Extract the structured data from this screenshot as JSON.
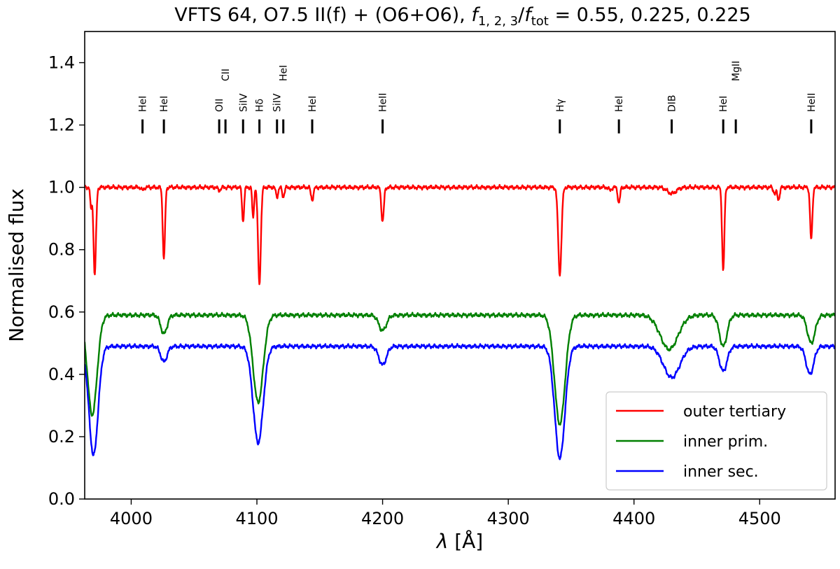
{
  "chart_data": {
    "type": "line",
    "title_parts": {
      "prefix": "VFTS 64, O7.5 II(f) + (O6+O6), ",
      "f_symbol": "f",
      "f_sub": "1, 2, 3",
      "slash": "/",
      "tot_sub": "tot",
      "suffix": " = 0.55, 0.225, 0.225"
    },
    "xlabel": {
      "lambda": "λ",
      "unit": " [Å]"
    },
    "ylabel": "Normalised flux",
    "xlim": [
      3963,
      4560
    ],
    "ylim": [
      0.0,
      1.5
    ],
    "x_ticks": [
      4000,
      4100,
      4200,
      4300,
      4400,
      4500
    ],
    "y_ticks": [
      "0.0",
      "0.2",
      "0.4",
      "0.6",
      "0.8",
      "1.0",
      "1.2",
      "1.4"
    ],
    "grid": false,
    "legend_position": "lower-right",
    "line_ids": [
      {
        "label": "HeI",
        "wavelength": 4009,
        "tier": 0
      },
      {
        "label": "HeI",
        "wavelength": 4026,
        "tier": 0
      },
      {
        "label": "OII",
        "wavelength": 4070,
        "tier": 0
      },
      {
        "label": "CII",
        "wavelength": 4075,
        "tier": 1
      },
      {
        "label": "SiIV",
        "wavelength": 4089,
        "tier": 0
      },
      {
        "label": "Hδ",
        "wavelength": 4102,
        "tier": 0
      },
      {
        "label": "SiIV",
        "wavelength": 4116,
        "tier": 0
      },
      {
        "label": "HeI",
        "wavelength": 4121,
        "tier": 1
      },
      {
        "label": "HeI",
        "wavelength": 4144,
        "tier": 0
      },
      {
        "label": "HeII",
        "wavelength": 4200,
        "tier": 0
      },
      {
        "label": "Hγ",
        "wavelength": 4341,
        "tier": 0
      },
      {
        "label": "HeI",
        "wavelength": 4388,
        "tier": 0
      },
      {
        "label": "DIB",
        "wavelength": 4430,
        "tier": 0
      },
      {
        "label": "HeI",
        "wavelength": 4471,
        "tier": 0
      },
      {
        "label": "MgII",
        "wavelength": 4481,
        "tier": 1
      },
      {
        "label": "HeII",
        "wavelength": 4541,
        "tier": 0
      }
    ],
    "series": [
      {
        "name": "outer tertiary",
        "color": "#ff0000",
        "continuum": 1.0,
        "lines": [
          {
            "center": 3968,
            "depth": 0.07,
            "width": 0.6
          },
          {
            "center": 3971,
            "depth": 0.28,
            "width": 1.0
          },
          {
            "center": 4009,
            "depth": 0.01,
            "width": 1.0
          },
          {
            "center": 4026,
            "depth": 0.23,
            "width": 0.9
          },
          {
            "center": 4070,
            "depth": 0.01,
            "width": 1.0
          },
          {
            "center": 4089,
            "depth": 0.11,
            "width": 0.8
          },
          {
            "center": 4097,
            "depth": 0.1,
            "width": 0.7
          },
          {
            "center": 4102,
            "depth": 0.31,
            "width": 1.1
          },
          {
            "center": 4116,
            "depth": 0.03,
            "width": 0.9
          },
          {
            "center": 4121,
            "depth": 0.03,
            "width": 0.9
          },
          {
            "center": 4144,
            "depth": 0.04,
            "width": 1.0
          },
          {
            "center": 4200,
            "depth": 0.11,
            "width": 1.0
          },
          {
            "center": 4341,
            "depth": 0.28,
            "width": 1.3
          },
          {
            "center": 4381,
            "depth": 0.01,
            "width": 1.0
          },
          {
            "center": 4388,
            "depth": 0.05,
            "width": 0.9
          },
          {
            "center": 4430,
            "depth": 0.02,
            "width": 3.5
          },
          {
            "center": 4471,
            "depth": 0.27,
            "width": 0.9
          },
          {
            "center": 4512,
            "depth": 0.02,
            "width": 1.0
          },
          {
            "center": 4515,
            "depth": 0.04,
            "width": 0.9
          },
          {
            "center": 4541,
            "depth": 0.17,
            "width": 0.9
          }
        ]
      },
      {
        "name": "inner prim.",
        "color": "#008000",
        "continuum": 0.59,
        "lines": [
          {
            "center": 3969,
            "depth": 0.32,
            "width": 3.8
          },
          {
            "center": 4026,
            "depth": 0.06,
            "width": 2.5
          },
          {
            "center": 4101,
            "depth": 0.28,
            "width": 4.0
          },
          {
            "center": 4200,
            "depth": 0.05,
            "width": 3.0
          },
          {
            "center": 4341,
            "depth": 0.35,
            "width": 4.2
          },
          {
            "center": 4428,
            "depth": 0.11,
            "width": 7.0
          },
          {
            "center": 4471,
            "depth": 0.1,
            "width": 3.0
          },
          {
            "center": 4541,
            "depth": 0.09,
            "width": 3.0
          }
        ]
      },
      {
        "name": "inner sec.",
        "color": "#0000ff",
        "continuum": 0.49,
        "lines": [
          {
            "center": 3970,
            "depth": 0.35,
            "width": 3.6
          },
          {
            "center": 4026,
            "depth": 0.05,
            "width": 2.5
          },
          {
            "center": 4101,
            "depth": 0.31,
            "width": 4.0
          },
          {
            "center": 4200,
            "depth": 0.06,
            "width": 3.0
          },
          {
            "center": 4341,
            "depth": 0.36,
            "width": 4.0
          },
          {
            "center": 4430,
            "depth": 0.1,
            "width": 6.5
          },
          {
            "center": 4471,
            "depth": 0.08,
            "width": 3.0
          },
          {
            "center": 4540,
            "depth": 0.09,
            "width": 3.0
          }
        ]
      }
    ]
  }
}
